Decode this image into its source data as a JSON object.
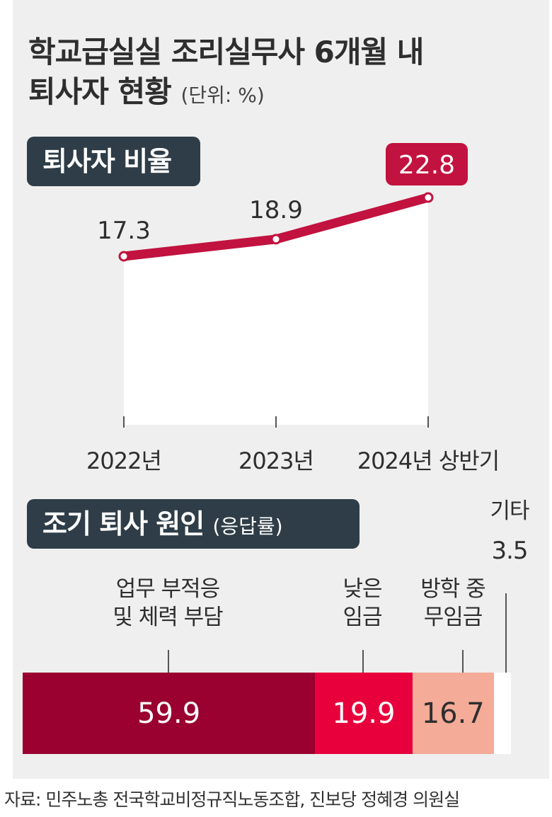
{
  "title_line1": "학교급실실 조리실무사 6개월 내",
  "title_line2": "퇴사자 현황",
  "unit": "(단위: %)",
  "section1_label": "퇴사자 비율",
  "section2_label": "조기 퇴사 원인",
  "section2_sub": "(응답률)",
  "source": "자료: 민주노총 전국학교비정규직노동조합, 진보당 정혜경 의원실",
  "colors": {
    "line": "#c2123f",
    "bar1": "#9a0030",
    "bar2": "#e8003d",
    "bar3": "#f4ab98",
    "bar4": "#ffffff",
    "label_bg": "#2e3d47"
  },
  "chart_data": [
    {
      "type": "line",
      "categories": [
        "2022년",
        "2023년",
        "2024년 상반기"
      ],
      "values": [
        17.3,
        18.9,
        22.8
      ],
      "value_labels": [
        "17.3",
        "18.9",
        "22.8"
      ],
      "highlight": "22.8",
      "title": "퇴사자 비율"
    },
    {
      "type": "bar",
      "stacked": true,
      "categories": [
        "업무 부적응\n및 체력 부담",
        "낮은\n임금",
        "방학 중\n무임금",
        "기타"
      ],
      "values": [
        59.9,
        19.9,
        16.7,
        3.5
      ],
      "value_labels": [
        "59.9",
        "19.9",
        "16.7",
        "3.5"
      ],
      "title": "조기 퇴사 원인",
      "subtitle": "(응답률)"
    }
  ]
}
